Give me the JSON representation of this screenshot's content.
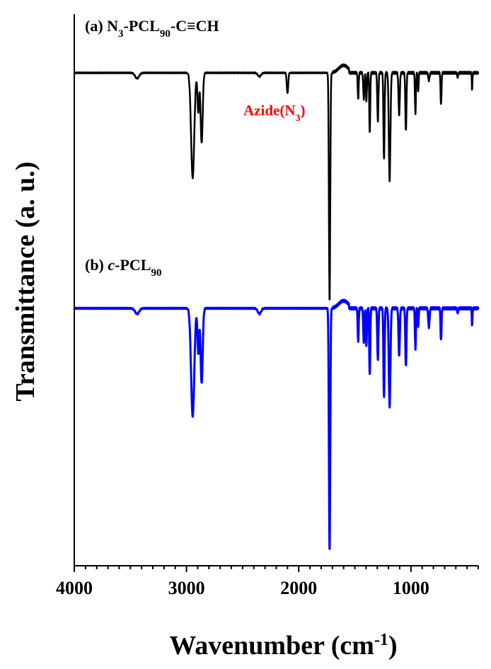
{
  "chart_data": {
    "type": "line",
    "xlabel": "Wavenumber (cm",
    "xlabel_sup": "-1",
    "xlabel_end": ")",
    "ylabel": "Transmittance (a. u.)",
    "xlim": [
      4000,
      400
    ],
    "x_reversed": true,
    "y_ticks_shown": false,
    "x_ticks": [
      4000,
      3000,
      2000,
      1000
    ],
    "x_tick_labels": [
      "4000",
      "3000",
      "2000",
      "1000"
    ],
    "grid": false,
    "legend": "none",
    "series": [
      {
        "label_prefix": "(a) N",
        "label_sub1": "3",
        "label_mid": "-PCL",
        "label_sub2": "90",
        "label_end": "-C≡CH",
        "color": "#000000",
        "baseline": 1.0,
        "peaks": [
          {
            "x": 3440,
            "depth": 0.06,
            "w": 25
          },
          {
            "x": 2945,
            "depth": 1.12,
            "w": 20
          },
          {
            "x": 2895,
            "depth": 0.42,
            "w": 10
          },
          {
            "x": 2865,
            "depth": 0.75,
            "w": 13
          },
          {
            "x": 2350,
            "depth": 0.04,
            "w": 20
          },
          {
            "x": 2100,
            "depth": 0.22,
            "w": 9
          },
          {
            "x": 1725,
            "depth": 2.45,
            "w": 8
          },
          {
            "x": 1470,
            "depth": 0.28,
            "w": 6
          },
          {
            "x": 1420,
            "depth": 0.28,
            "w": 7
          },
          {
            "x": 1397,
            "depth": 0.3,
            "w": 6
          },
          {
            "x": 1367,
            "depth": 0.65,
            "w": 6
          },
          {
            "x": 1295,
            "depth": 0.52,
            "w": 7
          },
          {
            "x": 1240,
            "depth": 0.92,
            "w": 7
          },
          {
            "x": 1190,
            "depth": 1.15,
            "w": 10
          },
          {
            "x": 1105,
            "depth": 0.45,
            "w": 8
          },
          {
            "x": 1045,
            "depth": 0.62,
            "w": 7
          },
          {
            "x": 960,
            "depth": 0.44,
            "w": 6
          },
          {
            "x": 935,
            "depth": 0.2,
            "w": 5
          },
          {
            "x": 840,
            "depth": 0.08,
            "w": 8
          },
          {
            "x": 732,
            "depth": 0.34,
            "w": 6
          },
          {
            "x": 584,
            "depth": 0.05,
            "w": 6
          },
          {
            "x": 455,
            "depth": 0.18,
            "w": 4
          }
        ]
      },
      {
        "label_prefix": "(b) ",
        "label_italic": "c",
        "label_mid": "-PCL",
        "label_sub2": "90",
        "label_end": "",
        "color": "#0000ff",
        "baseline": 0.0,
        "peaks": [
          {
            "x": 3440,
            "depth": 0.06,
            "w": 25
          },
          {
            "x": 2945,
            "depth": 1.15,
            "w": 20
          },
          {
            "x": 2895,
            "depth": 0.48,
            "w": 10
          },
          {
            "x": 2865,
            "depth": 0.8,
            "w": 13
          },
          {
            "x": 2350,
            "depth": 0.06,
            "w": 20
          },
          {
            "x": 1725,
            "depth": 2.6,
            "w": 8
          },
          {
            "x": 1470,
            "depth": 0.36,
            "w": 6
          },
          {
            "x": 1420,
            "depth": 0.36,
            "w": 7
          },
          {
            "x": 1397,
            "depth": 0.4,
            "w": 6
          },
          {
            "x": 1367,
            "depth": 0.72,
            "w": 6
          },
          {
            "x": 1295,
            "depth": 0.55,
            "w": 7
          },
          {
            "x": 1240,
            "depth": 0.95,
            "w": 7
          },
          {
            "x": 1190,
            "depth": 1.05,
            "w": 10
          },
          {
            "x": 1105,
            "depth": 0.5,
            "w": 8
          },
          {
            "x": 1045,
            "depth": 0.62,
            "w": 7
          },
          {
            "x": 960,
            "depth": 0.44,
            "w": 6
          },
          {
            "x": 935,
            "depth": 0.2,
            "w": 5
          },
          {
            "x": 840,
            "depth": 0.2,
            "w": 8
          },
          {
            "x": 732,
            "depth": 0.34,
            "w": 6
          },
          {
            "x": 584,
            "depth": 0.05,
            "w": 6
          },
          {
            "x": 455,
            "depth": 0.18,
            "w": 4
          }
        ]
      }
    ],
    "annotations": [
      {
        "text_prefix": "Azide(N",
        "text_sub": "3",
        "text_end": ")",
        "color": "#ff0000",
        "x": 1870,
        "near_series": 0
      }
    ]
  }
}
